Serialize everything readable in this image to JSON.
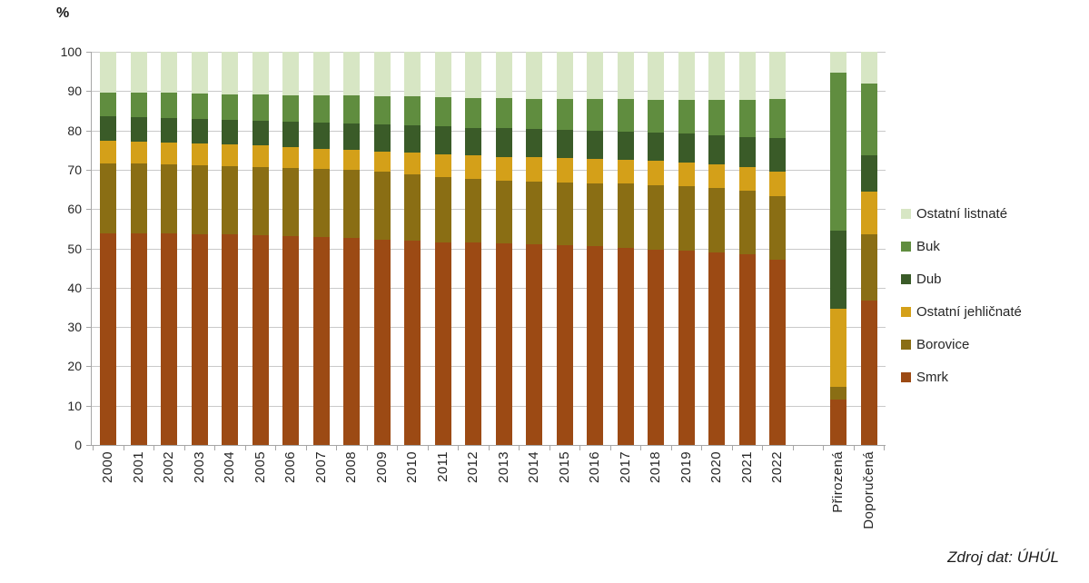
{
  "source": "Zdroj dat: ÚHÚL",
  "chart_data": {
    "type": "bar",
    "stacked": true,
    "title": "",
    "xlabel": "",
    "ylabel": "%",
    "unit": "%",
    "ylim": [
      0,
      100
    ],
    "yticks": [
      0,
      10,
      20,
      30,
      40,
      50,
      60,
      70,
      80,
      90,
      100
    ],
    "grid": true,
    "legend_position": "right",
    "legend_order_top_to_bottom": [
      "Ostatní listnaté",
      "Buk",
      "Dub",
      "Ostatní jehličnaté",
      "Borovice",
      "Smrk"
    ],
    "categories": [
      "2000",
      "2001",
      "2002",
      "2003",
      "2004",
      "2005",
      "2006",
      "2007",
      "2008",
      "2009",
      "2010",
      "2011",
      "2012",
      "2013",
      "2014",
      "2015",
      "2016",
      "2017",
      "2018",
      "2019",
      "2020",
      "2021",
      "2022",
      "Přirozená",
      "Doporučená"
    ],
    "gap_before_category": "Přirozená",
    "series": [
      {
        "name": "Smrk",
        "color": "#9C4A14",
        "values": [
          53.9,
          53.8,
          53.7,
          53.6,
          53.5,
          53.3,
          53.1,
          52.9,
          52.6,
          52.3,
          51.9,
          51.6,
          51.4,
          51.2,
          51.0,
          50.8,
          50.5,
          50.1,
          49.7,
          49.4,
          49.0,
          48.4,
          47.2,
          11.6,
          36.7
        ]
      },
      {
        "name": "Borovice",
        "color": "#8A6E14",
        "values": [
          17.7,
          17.7,
          17.6,
          17.5,
          17.4,
          17.4,
          17.4,
          17.3,
          17.3,
          17.2,
          16.9,
          16.6,
          16.3,
          16.1,
          16.0,
          16.0,
          16.1,
          16.3,
          16.4,
          16.4,
          16.4,
          16.2,
          16.1,
          3.2,
          16.9
        ]
      },
      {
        "name": "Ostatní jehličnaté",
        "color": "#D4A019",
        "values": [
          5.8,
          5.7,
          5.7,
          5.6,
          5.5,
          5.4,
          5.2,
          5.2,
          5.1,
          5.1,
          5.6,
          5.8,
          5.9,
          6.0,
          6.1,
          6.1,
          6.1,
          6.1,
          6.1,
          6.1,
          6.0,
          6.0,
          6.1,
          19.9,
          10.8
        ]
      },
      {
        "name": "Dub",
        "color": "#3A5B28",
        "values": [
          6.2,
          6.2,
          6.2,
          6.3,
          6.3,
          6.4,
          6.6,
          6.7,
          6.8,
          6.9,
          6.9,
          7.0,
          7.1,
          7.2,
          7.2,
          7.2,
          7.2,
          7.2,
          7.2,
          7.2,
          7.4,
          7.6,
          8.6,
          19.7,
          9.2
        ]
      },
      {
        "name": "Buk",
        "color": "#608D3F",
        "values": [
          6.1,
          6.2,
          6.3,
          6.4,
          6.5,
          6.6,
          6.7,
          6.8,
          7.0,
          7.2,
          7.3,
          7.4,
          7.6,
          7.7,
          7.8,
          7.9,
          8.0,
          8.2,
          8.4,
          8.7,
          9.0,
          9.6,
          9.9,
          40.2,
          18.4
        ]
      },
      {
        "name": "Ostatní listnaté",
        "color": "#D7E6C4",
        "values": [
          10.3,
          10.4,
          10.5,
          10.6,
          10.8,
          10.9,
          11.0,
          11.1,
          11.2,
          11.3,
          11.4,
          11.6,
          11.7,
          11.8,
          11.9,
          12.0,
          12.1,
          12.1,
          12.2,
          12.2,
          12.2,
          12.2,
          12.1,
          5.4,
          8.0
        ]
      }
    ]
  }
}
